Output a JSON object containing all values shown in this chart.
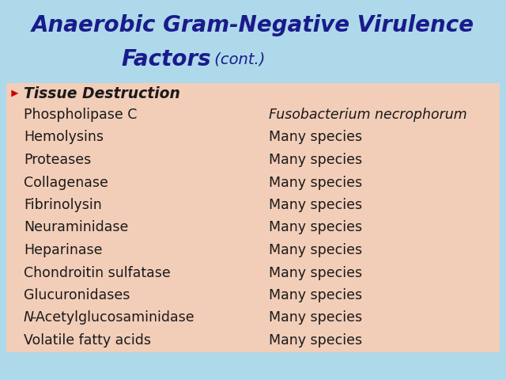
{
  "title_line1": "Anaerobic Gram-Negative Virulence",
  "title_line2": "Factors",
  "title_cont": " (cont.)",
  "title_color": "#1a1a8c",
  "title_fontsize": 20,
  "title_cont_fontsize": 14,
  "bg_color": "#aed9ea",
  "table_bg_color": "#f2cdb8",
  "section_header": "Tissue Destruction",
  "arrow_color": "#cc0000",
  "rows": [
    [
      "Phospholipase C",
      "Fusobacterium necrophorum",
      true
    ],
    [
      "Hemolysins",
      "Many species",
      false
    ],
    [
      "Proteases",
      "Many species",
      false
    ],
    [
      "Collagenase",
      "Many species",
      false
    ],
    [
      "Fibrinolysin",
      "Many species",
      false
    ],
    [
      "Neuraminidase",
      "Many species",
      false
    ],
    [
      "Heparinase",
      "Many species",
      false
    ],
    [
      "Chondroitin sulfatase",
      "Many species",
      false
    ],
    [
      "Glucuronidases",
      "Many species",
      false
    ],
    [
      "N-Acetylglucosaminidase",
      "Many species",
      false
    ],
    [
      "Volatile fatty acids",
      "Many species",
      false
    ]
  ],
  "text_color": "#1a1a1a",
  "text_fontsize": 12.5,
  "header_fontsize": 13.5
}
